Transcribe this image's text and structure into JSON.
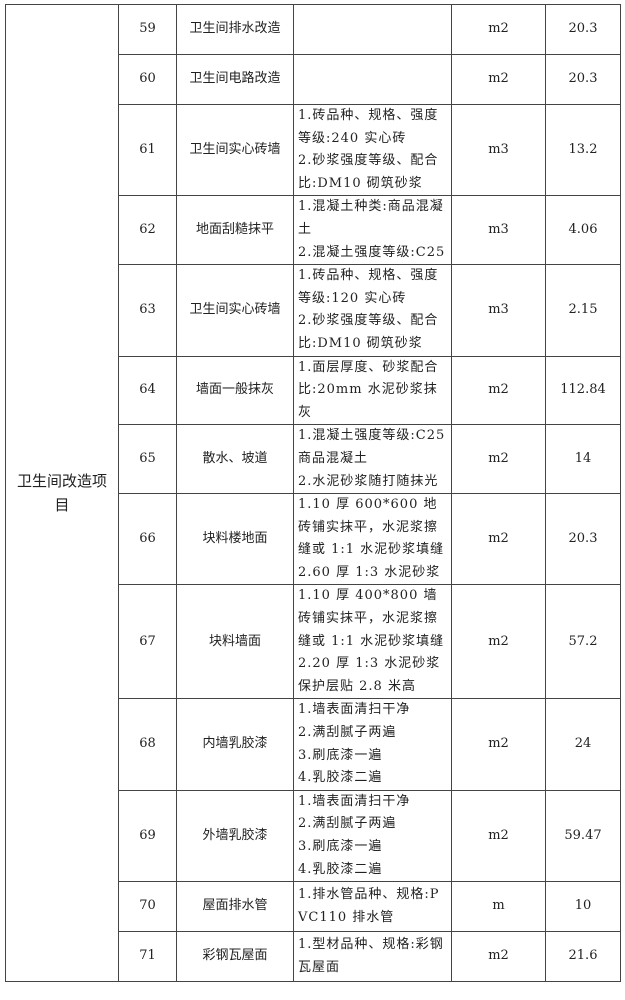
{
  "group": "卫生间改造项目",
  "rows": [
    {
      "no": "59",
      "name": "卫生间排水改造",
      "desc": [],
      "unit": "m2",
      "qty": "20.3"
    },
    {
      "no": "60",
      "name": "卫生间电路改造",
      "desc": [],
      "unit": "m2",
      "qty": "20.3"
    },
    {
      "no": "61",
      "name": "卫生间实心砖墙",
      "desc": [
        "1.砖品种、规格、强度等级:240 实心砖",
        "2.砂浆强度等级、配合比:DM10 砌筑砂浆"
      ],
      "unit": "m3",
      "qty": "13.2"
    },
    {
      "no": "62",
      "name": "地面刮糙抹平",
      "desc": [
        "1.混凝土种类:商品混凝土",
        "2.混凝土强度等级:C25"
      ],
      "unit": "m3",
      "qty": "4.06"
    },
    {
      "no": "63",
      "name": "卫生间实心砖墙",
      "desc": [
        "1.砖品种、规格、强度等级:120 实心砖",
        "2.砂浆强度等级、配合比:DM10 砌筑砂浆"
      ],
      "unit": "m3",
      "qty": "2.15"
    },
    {
      "no": "64",
      "name": "墙面一般抹灰",
      "desc": [
        "1.面层厚度、砂浆配合比:20mm 水泥砂浆抹灰"
      ],
      "unit": "m2",
      "qty": "112.84"
    },
    {
      "no": "65",
      "name": "散水、坡道",
      "desc": [
        "1.混凝土强度等级:C25 商品混凝土",
        "2.水泥砂浆随打随抹光"
      ],
      "unit": "m2",
      "qty": "14"
    },
    {
      "no": "66",
      "name": "块料楼地面",
      "desc": [
        "1.10 厚 600*600 地砖铺实抹平，水泥浆擦缝或 1:1 水泥砂浆填缝",
        "2.60 厚 1:3 水泥砂浆"
      ],
      "unit": "m2",
      "qty": "20.3"
    },
    {
      "no": "67",
      "name": "块料墙面",
      "desc": [
        "1.10 厚 400*800 墙砖铺实抹平，水泥浆擦缝或 1:1 水泥砂浆填缝",
        "2.20 厚 1:3 水泥砂浆保护层贴 2.8 米高"
      ],
      "unit": "m2",
      "qty": "57.2"
    },
    {
      "no": "68",
      "name": "内墙乳胶漆",
      "desc": [
        "1.墙表面清扫干净",
        "2.满刮腻子两遍",
        "3.刷底漆一遍",
        "4.乳胶漆二遍"
      ],
      "unit": "m2",
      "qty": "24"
    },
    {
      "no": "69",
      "name": "外墙乳胶漆",
      "desc": [
        "1.墙表面清扫干净",
        "2.满刮腻子两遍",
        "3.刷底漆一遍",
        "4.乳胶漆二遍"
      ],
      "unit": "m2",
      "qty": "59.47"
    },
    {
      "no": "70",
      "name": "屋面排水管",
      "desc": [
        "1.排水管品种、规格:PVC110 排水管"
      ],
      "unit": "m",
      "qty": "10"
    },
    {
      "no": "71",
      "name": "彩钢瓦屋面",
      "desc": [
        "1.型材品种、规格:彩钢瓦屋面"
      ],
      "unit": "m2",
      "qty": "21.6"
    }
  ]
}
